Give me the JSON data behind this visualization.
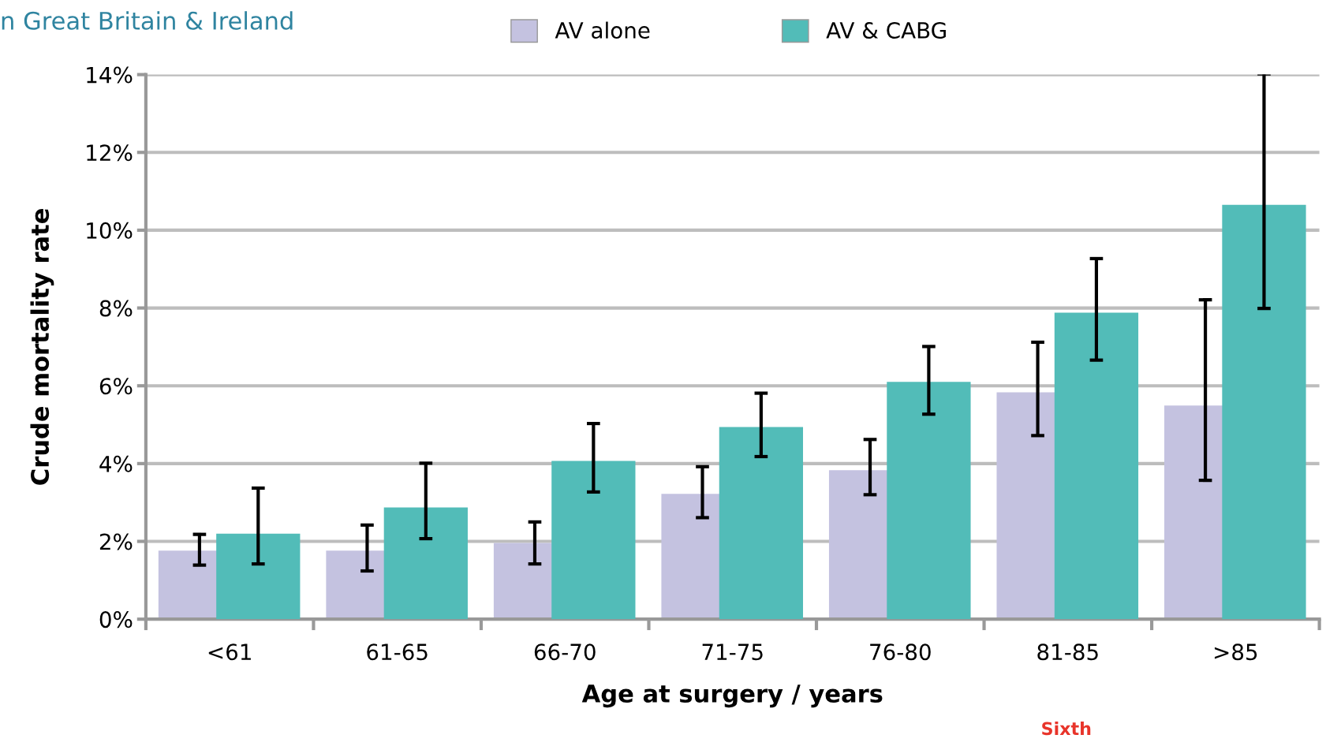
{
  "chart_data": {
    "type": "bar",
    "title": "n Great Britain & Ireland",
    "xlabel": "Age at surgery / years",
    "ylabel": "Crude mortality rate",
    "categories": [
      "<61",
      "61-65",
      "66-70",
      "71-75",
      "76-80",
      "81-85",
      ">85"
    ],
    "series": [
      {
        "name": "AV alone",
        "color": "#c4c2e0",
        "values": [
          1.76,
          1.76,
          1.96,
          3.22,
          3.83,
          5.83,
          5.49
        ],
        "errors": [
          [
            1.39,
            2.18
          ],
          [
            1.24,
            2.42
          ],
          [
            1.42,
            2.5
          ],
          [
            2.61,
            3.92
          ],
          [
            3.2,
            4.62
          ],
          [
            4.72,
            7.12
          ],
          [
            3.57,
            8.21
          ]
        ]
      },
      {
        "name": "AV & CABG",
        "color": "#52bcb8",
        "values": [
          2.2,
          2.87,
          4.07,
          4.94,
          6.1,
          7.88,
          10.65
        ],
        "errors": [
          [
            1.42,
            3.37
          ],
          [
            2.07,
            4.01
          ],
          [
            3.27,
            5.03
          ],
          [
            4.18,
            5.81
          ],
          [
            5.27,
            7.01
          ],
          [
            6.66,
            9.27
          ],
          [
            7.99,
            14.02
          ]
        ]
      }
    ],
    "ylim": [
      0,
      14
    ],
    "yticks": [
      {
        "value": 0,
        "label": "0%"
      },
      {
        "value": 2,
        "label": "2%"
      },
      {
        "value": 4,
        "label": "4%"
      },
      {
        "value": 6,
        "label": "6%"
      },
      {
        "value": 8,
        "label": "8%"
      },
      {
        "value": 10,
        "label": "10%"
      },
      {
        "value": 12,
        "label": "12%"
      },
      {
        "value": 14,
        "label": "14%"
      }
    ],
    "grid": "y",
    "legend": "top",
    "annotations": [
      "Sixth"
    ]
  }
}
